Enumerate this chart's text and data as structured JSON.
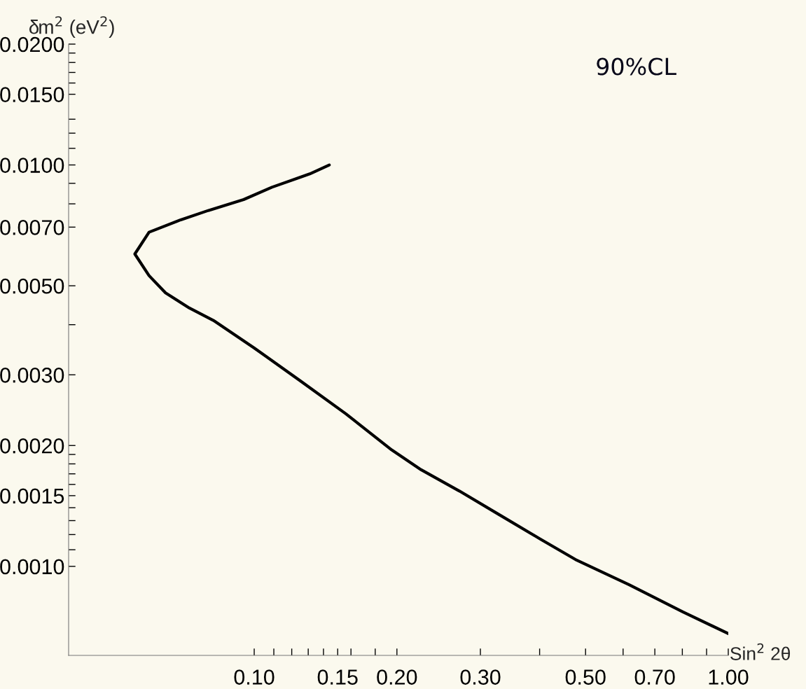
{
  "chart_data": {
    "type": "line",
    "xlabel": "Sin$^{2}$ 2θ",
    "ylabel": "δm$^{2}$ (eV$^{2}$)",
    "annotations": [
      "90%CL"
    ],
    "log": "xy",
    "grid": false,
    "legend": false,
    "marker": "none",
    "line_style": "solid",
    "xlim": [
      0.0406,
      1.0
    ],
    "ylim": [
      0.0006,
      0.02
    ],
    "xticks": [
      {
        "value": 0.1,
        "label": "0.10"
      },
      {
        "value": 0.11,
        "label": null
      },
      {
        "value": 0.12,
        "label": null
      },
      {
        "value": 0.13,
        "label": null
      },
      {
        "value": 0.14,
        "label": null
      },
      {
        "value": 0.15,
        "label": "0.15"
      },
      {
        "value": 0.16,
        "label": null
      },
      {
        "value": 0.18,
        "label": null
      },
      {
        "value": 0.2,
        "label": "0.20"
      },
      {
        "value": 0.3,
        "label": "0.30"
      },
      {
        "value": 0.4,
        "label": null
      },
      {
        "value": 0.5,
        "label": "0.50"
      },
      {
        "value": 0.6,
        "label": null
      },
      {
        "value": 0.7,
        "label": "0.70"
      },
      {
        "value": 0.8,
        "label": null
      },
      {
        "value": 0.9,
        "label": null
      },
      {
        "value": 1.0,
        "label": "1.00"
      }
    ],
    "yticks": [
      {
        "value": 0.001,
        "label": "0.0010"
      },
      {
        "value": 0.0011,
        "label": null
      },
      {
        "value": 0.0012,
        "label": null
      },
      {
        "value": 0.0013,
        "label": null
      },
      {
        "value": 0.0014,
        "label": null
      },
      {
        "value": 0.0015,
        "label": "0.0015"
      },
      {
        "value": 0.0016,
        "label": null
      },
      {
        "value": 0.0017,
        "label": null
      },
      {
        "value": 0.0018,
        "label": null
      },
      {
        "value": 0.0019,
        "label": null
      },
      {
        "value": 0.002,
        "label": "0.0020"
      },
      {
        "value": 0.003,
        "label": "0.0030"
      },
      {
        "value": 0.004,
        "label": null
      },
      {
        "value": 0.005,
        "label": "0.0050"
      },
      {
        "value": 0.007,
        "label": "0.0070"
      },
      {
        "value": 0.008,
        "label": null
      },
      {
        "value": 0.009,
        "label": null
      },
      {
        "value": 0.01,
        "label": "0.0100"
      },
      {
        "value": 0.011,
        "label": null
      },
      {
        "value": 0.012,
        "label": null
      },
      {
        "value": 0.013,
        "label": null
      },
      {
        "value": 0.015,
        "label": "0.0150"
      },
      {
        "value": 0.016,
        "label": null
      },
      {
        "value": 0.017,
        "label": null
      },
      {
        "value": 0.018,
        "label": null
      },
      {
        "value": 0.019,
        "label": null
      },
      {
        "value": 0.02,
        "label": "0.0200"
      }
    ],
    "series": [
      {
        "color": "#000000",
        "x": [
          0.144,
          0.131,
          0.109,
          0.095,
          0.08,
          0.07,
          0.06,
          0.056,
          0.06,
          0.065,
          0.073,
          0.082,
          0.1,
          0.125,
          0.156,
          0.195,
          0.225,
          0.271,
          0.327,
          0.401,
          0.476,
          0.618,
          0.802,
          1.0
        ],
        "values": [
          0.01,
          0.0095,
          0.0088,
          0.0082,
          0.0077,
          0.0073,
          0.0068,
          0.006,
          0.0053,
          0.0048,
          0.0044,
          0.0041,
          0.0035,
          0.0029,
          0.0024,
          0.00195,
          0.00174,
          0.00154,
          0.00135,
          0.00117,
          0.00104,
          0.0009,
          0.00077,
          0.00068
        ]
      }
    ]
  }
}
